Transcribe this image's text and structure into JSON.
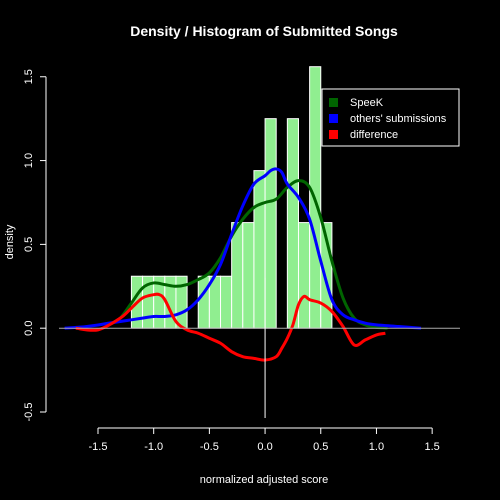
{
  "chart_data": {
    "type": "histogram",
    "title": "Density / Histogram of Submitted Songs",
    "xlabel": "normalized adjusted score",
    "ylabel": "density",
    "xlim": [
      -1.85,
      1.75
    ],
    "ylim": [
      -0.5,
      1.6
    ],
    "x_ticks": [
      -1.5,
      -1.0,
      -0.5,
      0.0,
      0.5,
      1.0,
      1.5
    ],
    "x_tick_labels": [
      "-1.5",
      "-1.0",
      "-0.5",
      "0.0",
      "0.5",
      "1.0",
      "1.5"
    ],
    "y_ticks": [
      -0.5,
      0.0,
      0.5,
      1.0,
      1.5
    ],
    "y_tick_labels": [
      "-0.5",
      "0.0",
      "0.5",
      "1.0",
      "1.5"
    ],
    "grid": false,
    "legend_position": "top-right",
    "colors": {
      "background": "#000000",
      "foreground": "#ffffff",
      "histogram_fill": "#90ee90",
      "histogram_border": "#ffffff"
    },
    "histogram": {
      "breaks": [
        -1.2,
        -1.1,
        -1.0,
        -0.9,
        -0.8,
        -0.7,
        -0.6,
        -0.5,
        -0.4,
        -0.3,
        -0.2,
        -0.1,
        0.0,
        0.1,
        0.2,
        0.3,
        0.4,
        0.5,
        0.6,
        0.7
      ],
      "density": [
        0.31,
        0.31,
        0.31,
        0.31,
        0.31,
        0,
        0.31,
        0.31,
        0.31,
        0.63,
        0.63,
        0.94,
        1.25,
        0,
        1.25,
        0.63,
        1.56,
        0.63,
        0
      ]
    },
    "series": [
      {
        "name": "SpeeK",
        "color": "#006400",
        "x": [
          -1.4,
          -1.3,
          -1.2,
          -1.1,
          -1.0,
          -0.9,
          -0.8,
          -0.7,
          -0.6,
          -0.5,
          -0.4,
          -0.3,
          -0.2,
          -0.1,
          0.0,
          0.1,
          0.2,
          0.3,
          0.4,
          0.5,
          0.6,
          0.7,
          0.8,
          0.9,
          1.0,
          1.1
        ],
        "y": [
          0.02,
          0.06,
          0.15,
          0.24,
          0.27,
          0.26,
          0.25,
          0.26,
          0.29,
          0.33,
          0.42,
          0.55,
          0.65,
          0.72,
          0.75,
          0.77,
          0.84,
          0.88,
          0.84,
          0.66,
          0.4,
          0.18,
          0.06,
          0.02,
          0.005,
          0.0
        ]
      },
      {
        "name": "others' submissions",
        "color": "#0000ff",
        "x": [
          -1.8,
          -1.6,
          -1.4,
          -1.3,
          -1.2,
          -1.1,
          -1.0,
          -0.9,
          -0.8,
          -0.7,
          -0.6,
          -0.5,
          -0.4,
          -0.3,
          -0.2,
          -0.1,
          0.0,
          0.05,
          0.1,
          0.15,
          0.2,
          0.3,
          0.4,
          0.5,
          0.6,
          0.7,
          0.8,
          0.9,
          1.0,
          1.2,
          1.4
        ],
        "y": [
          0.0,
          0.01,
          0.03,
          0.04,
          0.05,
          0.06,
          0.07,
          0.07,
          0.08,
          0.11,
          0.17,
          0.26,
          0.38,
          0.56,
          0.73,
          0.86,
          0.91,
          0.94,
          0.95,
          0.93,
          0.86,
          0.78,
          0.65,
          0.4,
          0.17,
          0.08,
          0.05,
          0.03,
          0.02,
          0.01,
          0.0
        ]
      },
      {
        "name": "difference",
        "color": "#ff0000",
        "x": [
          -1.7,
          -1.5,
          -1.3,
          -1.2,
          -1.1,
          -1.0,
          -0.95,
          -0.9,
          -0.8,
          -0.7,
          -0.6,
          -0.5,
          -0.4,
          -0.3,
          -0.2,
          -0.1,
          0.0,
          0.1,
          0.15,
          0.2,
          0.25,
          0.3,
          0.35,
          0.4,
          0.5,
          0.6,
          0.7,
          0.8,
          0.9,
          1.0,
          1.08
        ],
        "y": [
          0.0,
          -0.01,
          0.06,
          0.12,
          0.18,
          0.2,
          0.2,
          0.17,
          0.04,
          -0.01,
          -0.03,
          -0.06,
          -0.09,
          -0.14,
          -0.17,
          -0.18,
          -0.19,
          -0.17,
          -0.12,
          -0.06,
          0.02,
          0.14,
          0.19,
          0.17,
          0.15,
          0.1,
          0.01,
          -0.1,
          -0.07,
          -0.04,
          -0.03
        ]
      }
    ]
  }
}
